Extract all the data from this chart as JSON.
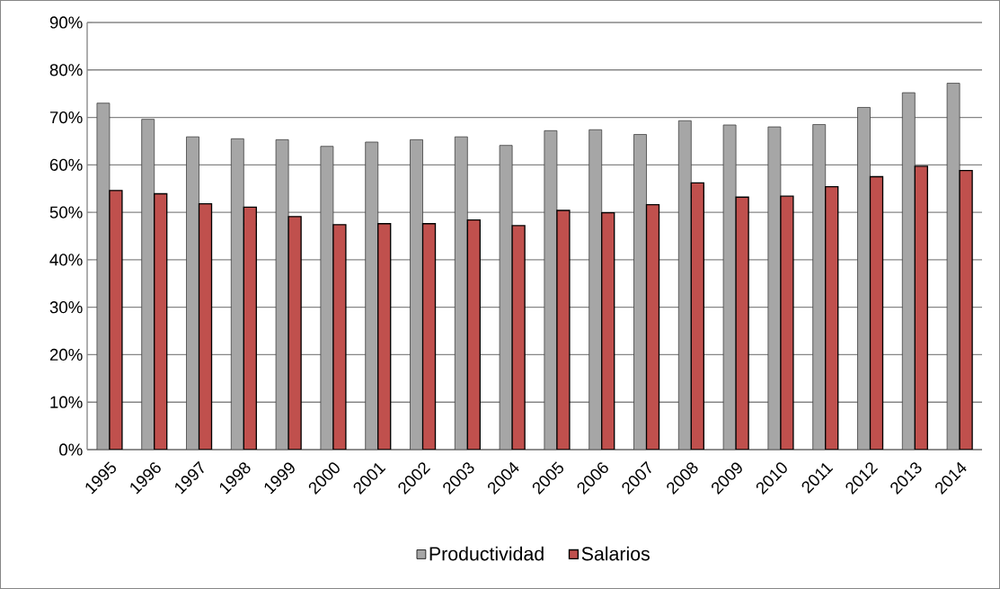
{
  "chart_data": {
    "type": "bar",
    "categories": [
      "1995",
      "1996",
      "1997",
      "1998",
      "1999",
      "2000",
      "2001",
      "2002",
      "2003",
      "2004",
      "2005",
      "2006",
      "2007",
      "2008",
      "2009",
      "2010",
      "2011",
      "2012",
      "2013",
      "2014"
    ],
    "series": [
      {
        "name": "Productividad",
        "color": "#a6a6a6",
        "values": [
          73.0,
          69.6,
          65.9,
          65.5,
          65.3,
          63.9,
          64.8,
          65.3,
          65.9,
          64.1,
          67.2,
          67.4,
          66.4,
          69.3,
          68.4,
          68.0,
          68.5,
          72.1,
          75.2,
          77.2
        ]
      },
      {
        "name": "Salarios",
        "color": "#c0504d",
        "values": [
          54.6,
          53.9,
          51.8,
          51.1,
          49.1,
          47.4,
          47.6,
          47.6,
          48.4,
          47.2,
          50.4,
          49.9,
          51.6,
          56.2,
          53.2,
          53.4,
          55.4,
          57.5,
          59.7,
          58.8
        ]
      }
    ],
    "ylim": [
      0,
      90
    ],
    "yticks": [
      {
        "value": 0,
        "label": "0%"
      },
      {
        "value": 10,
        "label": "10%"
      },
      {
        "value": 20,
        "label": "20%"
      },
      {
        "value": 30,
        "label": "30%"
      },
      {
        "value": 40,
        "label": "40%"
      },
      {
        "value": 50,
        "label": "50%"
      },
      {
        "value": 60,
        "label": "60%"
      },
      {
        "value": 70,
        "label": "70%"
      },
      {
        "value": 80,
        "label": "80%"
      },
      {
        "value": 90,
        "label": "90%"
      }
    ],
    "grid": "y",
    "legend": "bottom"
  }
}
